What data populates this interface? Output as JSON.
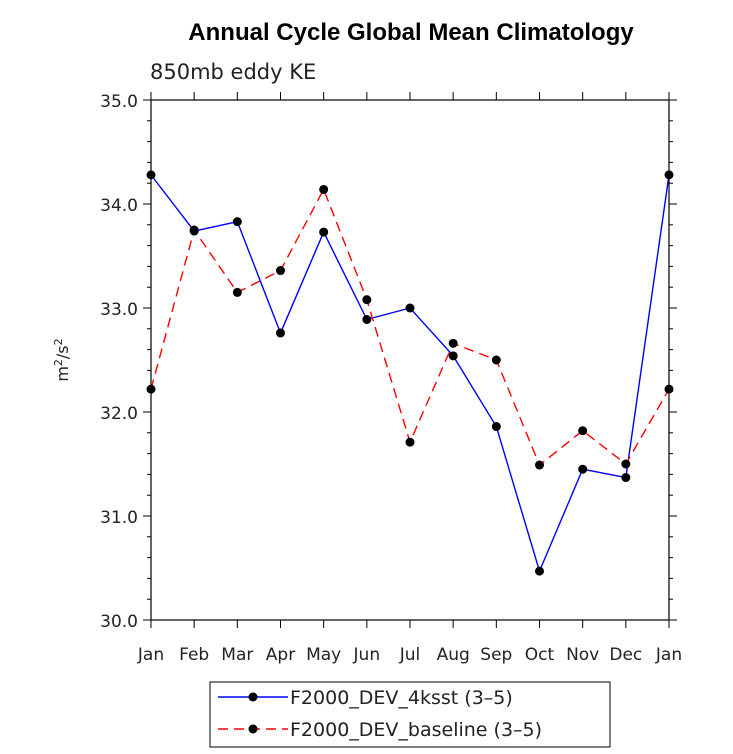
{
  "chart_data": {
    "type": "line",
    "title": "Annual Cycle Global Mean Climatology",
    "subtitle": "850mb eddy KE",
    "xlabel": "",
    "ylabel_base": "m",
    "ylabel_sup1": "2",
    "ylabel_mid": "/s",
    "ylabel_sup2": "2",
    "categories": [
      "Jan",
      "Feb",
      "Mar",
      "Apr",
      "May",
      "Jun",
      "Jul",
      "Aug",
      "Sep",
      "Oct",
      "Nov",
      "Dec",
      "Jan"
    ],
    "ylim": [
      30.0,
      35.0
    ],
    "yticks": [
      "30.0",
      "31.0",
      "32.0",
      "33.0",
      "34.0",
      "35.0"
    ],
    "grid": false,
    "legend_position": "bottom",
    "series": [
      {
        "name": "F2000_DEV_4ksst (3–5)",
        "color": "#0000ff",
        "dash": "solid",
        "values": [
          34.28,
          33.74,
          33.83,
          32.76,
          33.73,
          32.89,
          33.0,
          32.54,
          31.86,
          30.47,
          31.45,
          31.37,
          34.28
        ]
      },
      {
        "name": "F2000_DEV_baseline (3–5)",
        "color": "#ff0000",
        "dash": "dashed",
        "values": [
          32.22,
          33.75,
          33.15,
          33.36,
          34.14,
          33.08,
          31.71,
          32.66,
          32.5,
          31.49,
          31.82,
          31.5,
          32.22
        ]
      }
    ]
  }
}
